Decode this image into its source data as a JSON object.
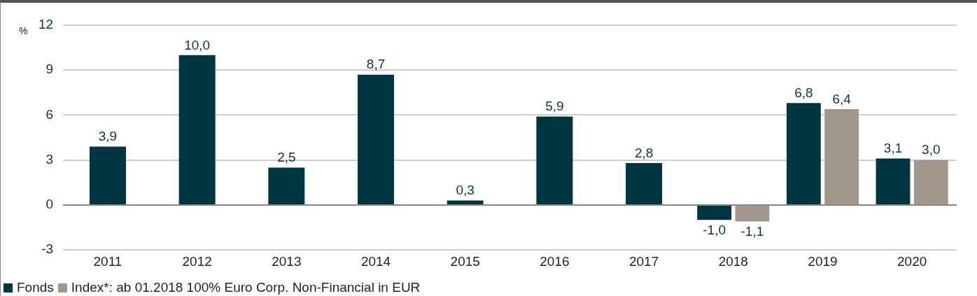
{
  "chart_data": {
    "type": "bar",
    "ylabel": "%",
    "categories": [
      "2011",
      "2012",
      "2013",
      "2014",
      "2015",
      "2016",
      "2017",
      "2018",
      "2019",
      "2020"
    ],
    "series": [
      {
        "name": "Fonds",
        "color": "#003642",
        "values": [
          3.9,
          10.0,
          2.5,
          8.7,
          0.3,
          5.9,
          2.8,
          -1.0,
          6.8,
          3.1
        ],
        "value_labels": [
          "3,9",
          "10,0",
          "2,5",
          "8,7",
          "0,3",
          "5,9",
          "2,8",
          "-1,0",
          "6,8",
          "3,1"
        ]
      },
      {
        "name": "Index*: ab 01.2018 100% Euro Corp. Non-Financial in EUR",
        "color": "#a1978c",
        "values": [
          null,
          null,
          null,
          null,
          null,
          null,
          null,
          -1.1,
          6.4,
          3.0
        ],
        "value_labels": [
          null,
          null,
          null,
          null,
          null,
          null,
          null,
          "-1,1",
          "6,4",
          "3,0"
        ]
      }
    ],
    "ylim": [
      -3,
      12
    ],
    "yticks": [
      -3,
      0,
      3,
      6,
      9,
      12
    ],
    "grid": "y",
    "legend": "bottom left"
  }
}
